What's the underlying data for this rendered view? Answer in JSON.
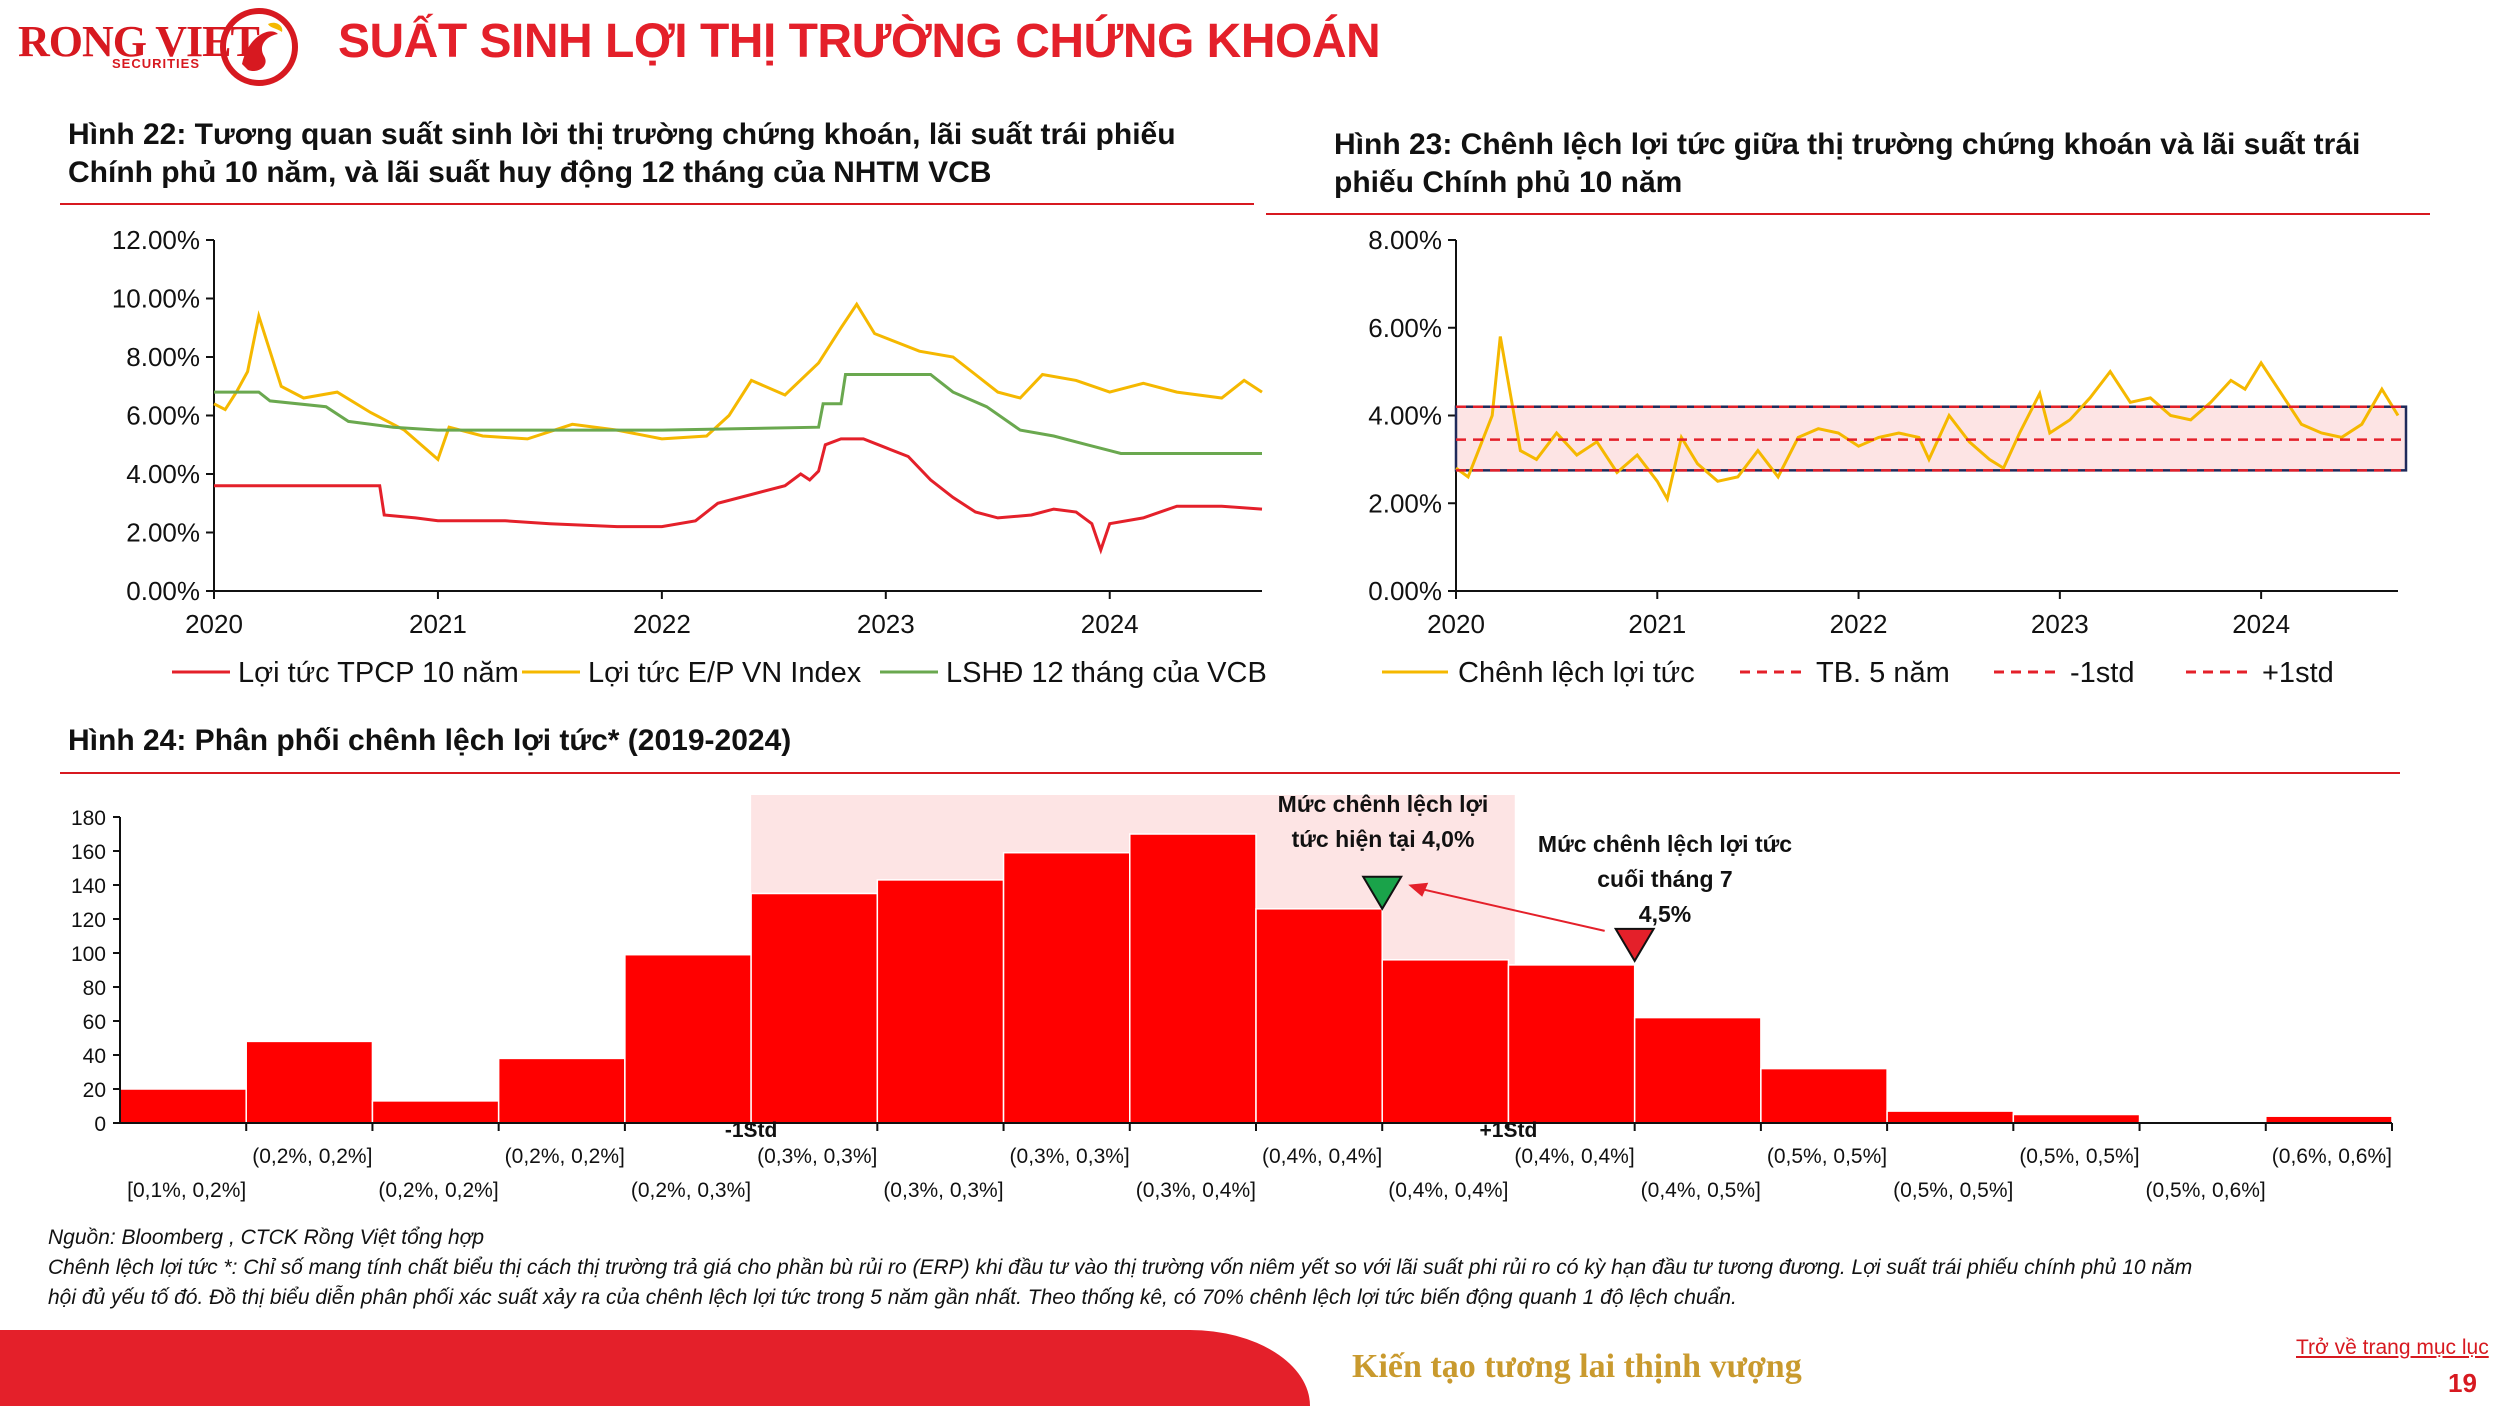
{
  "header": {
    "logo_main": "RONG VIET",
    "logo_sub": "SECURITIES",
    "title": "SUẤT SINH LỢI THỊ TRƯỜNG CHỨNG KHOÁN"
  },
  "fig22": {
    "title_line1": "Hình 22: Tương quan suất sinh lời thị trường chứng khoán, lãi suất trái phiếu",
    "title_line2": "Chính phủ 10 năm, và lãi suất huy động 12 tháng của NHTM VCB"
  },
  "fig23": {
    "title_line1": "Hình 23: Chênh lệch lợi tức giữa thị trường chứng khoán và lãi suất trái",
    "title_line2": "phiếu Chính phủ 10 năm"
  },
  "fig24": {
    "title": "Hình 24: Phân phối chênh lệch lợi tức* (2019-2024)"
  },
  "colors": {
    "red": "#e4202a",
    "gold": "#f5b800",
    "green": "#6aa84f",
    "band": "#fde4e4",
    "navy": "#1f2a5a"
  },
  "chart_data": [
    {
      "type": "line",
      "ylim": [
        0,
        12
      ],
      "y_ticks": [
        "0.00%",
        "2.00%",
        "4.00%",
        "6.00%",
        "8.00%",
        "10.00%",
        "12.00%"
      ],
      "x_ticks": [
        "2020",
        "2021",
        "2022",
        "2023",
        "2024"
      ],
      "xlim": [
        2020.0,
        2024.68
      ],
      "series": [
        {
          "name": "Lợi tức TPCP 10 năm",
          "color": "#e4202a",
          "points": [
            [
              2020.0,
              3.6
            ],
            [
              2020.74,
              3.6
            ],
            [
              2020.76,
              2.6
            ],
            [
              2020.9,
              2.5
            ],
            [
              2021.0,
              2.4
            ],
            [
              2021.3,
              2.4
            ],
            [
              2021.5,
              2.3
            ],
            [
              2021.8,
              2.2
            ],
            [
              2022.0,
              2.2
            ],
            [
              2022.15,
              2.4
            ],
            [
              2022.25,
              3.0
            ],
            [
              2022.4,
              3.3
            ],
            [
              2022.55,
              3.6
            ],
            [
              2022.62,
              4.0
            ],
            [
              2022.66,
              3.8
            ],
            [
              2022.7,
              4.1
            ],
            [
              2022.73,
              5.0
            ],
            [
              2022.8,
              5.2
            ],
            [
              2022.9,
              5.2
            ],
            [
              2023.0,
              4.9
            ],
            [
              2023.1,
              4.6
            ],
            [
              2023.2,
              3.8
            ],
            [
              2023.3,
              3.2
            ],
            [
              2023.4,
              2.7
            ],
            [
              2023.5,
              2.5
            ],
            [
              2023.65,
              2.6
            ],
            [
              2023.75,
              2.8
            ],
            [
              2023.85,
              2.7
            ],
            [
              2023.92,
              2.3
            ],
            [
              2023.96,
              1.4
            ],
            [
              2024.0,
              2.3
            ],
            [
              2024.15,
              2.5
            ],
            [
              2024.3,
              2.9
            ],
            [
              2024.5,
              2.9
            ],
            [
              2024.68,
              2.8
            ]
          ]
        },
        {
          "name": "Lợi tức E/P VN Index",
          "color": "#f5b800",
          "points": [
            [
              2020.0,
              6.4
            ],
            [
              2020.05,
              6.2
            ],
            [
              2020.1,
              6.8
            ],
            [
              2020.15,
              7.5
            ],
            [
              2020.2,
              9.4
            ],
            [
              2020.25,
              8.2
            ],
            [
              2020.3,
              7.0
            ],
            [
              2020.4,
              6.6
            ],
            [
              2020.55,
              6.8
            ],
            [
              2020.7,
              6.1
            ],
            [
              2020.85,
              5.5
            ],
            [
              2021.0,
              4.5
            ],
            [
              2021.05,
              5.6
            ],
            [
              2021.2,
              5.3
            ],
            [
              2021.4,
              5.2
            ],
            [
              2021.6,
              5.7
            ],
            [
              2021.8,
              5.5
            ],
            [
              2022.0,
              5.2
            ],
            [
              2022.2,
              5.3
            ],
            [
              2022.3,
              6.0
            ],
            [
              2022.4,
              7.2
            ],
            [
              2022.55,
              6.7
            ],
            [
              2022.7,
              7.8
            ],
            [
              2022.8,
              9.0
            ],
            [
              2022.87,
              9.8
            ],
            [
              2022.95,
              8.8
            ],
            [
              2023.05,
              8.5
            ],
            [
              2023.15,
              8.2
            ],
            [
              2023.3,
              8.0
            ],
            [
              2023.4,
              7.4
            ],
            [
              2023.5,
              6.8
            ],
            [
              2023.6,
              6.6
            ],
            [
              2023.7,
              7.4
            ],
            [
              2023.85,
              7.2
            ],
            [
              2024.0,
              6.8
            ],
            [
              2024.15,
              7.1
            ],
            [
              2024.3,
              6.8
            ],
            [
              2024.5,
              6.6
            ],
            [
              2024.6,
              7.2
            ],
            [
              2024.68,
              6.8
            ]
          ]
        },
        {
          "name": "LSHĐ 12  tháng của VCB",
          "color": "#6aa84f",
          "points": [
            [
              2020.0,
              6.8
            ],
            [
              2020.2,
              6.8
            ],
            [
              2020.25,
              6.5
            ],
            [
              2020.5,
              6.3
            ],
            [
              2020.6,
              5.8
            ],
            [
              2020.8,
              5.6
            ],
            [
              2021.0,
              5.5
            ],
            [
              2022.0,
              5.5
            ],
            [
              2022.7,
              5.6
            ],
            [
              2022.72,
              6.4
            ],
            [
              2022.8,
              6.4
            ],
            [
              2022.82,
              7.4
            ],
            [
              2023.2,
              7.4
            ],
            [
              2023.3,
              6.8
            ],
            [
              2023.45,
              6.3
            ],
            [
              2023.6,
              5.5
            ],
            [
              2023.75,
              5.3
            ],
            [
              2023.9,
              5.0
            ],
            [
              2024.0,
              4.8
            ],
            [
              2024.05,
              4.7
            ],
            [
              2024.68,
              4.7
            ]
          ]
        }
      ]
    },
    {
      "type": "line",
      "ylim": [
        0,
        8
      ],
      "y_ticks": [
        "0.00%",
        "2.00%",
        "4.00%",
        "6.00%",
        "8.00%"
      ],
      "x_ticks": [
        "2020",
        "2021",
        "2022",
        "2023",
        "2024"
      ],
      "xlim": [
        2020.0,
        2024.68
      ],
      "mean": 3.45,
      "minus_1std": 2.75,
      "plus_1std": 4.2,
      "series": [
        {
          "name": "Chênh lệch lợi tức",
          "color": "#f5b800",
          "points": [
            [
              2020.0,
              2.8
            ],
            [
              2020.06,
              2.6
            ],
            [
              2020.12,
              3.3
            ],
            [
              2020.18,
              4.0
            ],
            [
              2020.22,
              5.8
            ],
            [
              2020.27,
              4.5
            ],
            [
              2020.32,
              3.2
            ],
            [
              2020.4,
              3.0
            ],
            [
              2020.5,
              3.6
            ],
            [
              2020.6,
              3.1
            ],
            [
              2020.7,
              3.4
            ],
            [
              2020.8,
              2.7
            ],
            [
              2020.9,
              3.1
            ],
            [
              2021.0,
              2.5
            ],
            [
              2021.05,
              2.1
            ],
            [
              2021.12,
              3.5
            ],
            [
              2021.2,
              2.9
            ],
            [
              2021.3,
              2.5
            ],
            [
              2021.4,
              2.6
            ],
            [
              2021.5,
              3.2
            ],
            [
              2021.6,
              2.6
            ],
            [
              2021.7,
              3.5
            ],
            [
              2021.8,
              3.7
            ],
            [
              2021.9,
              3.6
            ],
            [
              2022.0,
              3.3
            ],
            [
              2022.1,
              3.5
            ],
            [
              2022.2,
              3.6
            ],
            [
              2022.3,
              3.5
            ],
            [
              2022.35,
              3.0
            ],
            [
              2022.45,
              4.0
            ],
            [
              2022.55,
              3.4
            ],
            [
              2022.65,
              3.0
            ],
            [
              2022.72,
              2.8
            ],
            [
              2022.8,
              3.6
            ],
            [
              2022.9,
              4.5
            ],
            [
              2022.95,
              3.6
            ],
            [
              2023.05,
              3.9
            ],
            [
              2023.15,
              4.4
            ],
            [
              2023.25,
              5.0
            ],
            [
              2023.35,
              4.3
            ],
            [
              2023.45,
              4.4
            ],
            [
              2023.55,
              4.0
            ],
            [
              2023.65,
              3.9
            ],
            [
              2023.75,
              4.3
            ],
            [
              2023.85,
              4.8
            ],
            [
              2023.92,
              4.6
            ],
            [
              2024.0,
              5.2
            ],
            [
              2024.1,
              4.5
            ],
            [
              2024.2,
              3.8
            ],
            [
              2024.3,
              3.6
            ],
            [
              2024.4,
              3.5
            ],
            [
              2024.5,
              3.8
            ],
            [
              2024.6,
              4.6
            ],
            [
              2024.68,
              4.0
            ]
          ]
        },
        {
          "name": "TB. 5 năm",
          "color": "#e4202a",
          "style": "dashed",
          "value": 3.45
        },
        {
          "name": "-1std",
          "color": "#e4202a",
          "style": "dashed",
          "value": 2.75
        },
        {
          "name": "+1std",
          "color": "#e4202a",
          "style": "dashed",
          "value": 4.2
        }
      ]
    },
    {
      "type": "bar",
      "ylim": [
        0,
        180
      ],
      "y_ticks": [
        "0",
        "20",
        "40",
        "60",
        "80",
        "100",
        "120",
        "140",
        "160",
        "180"
      ],
      "categories": [
        "[0,1%, 0,2%]",
        "(0,2%, 0,2%]",
        "(0,2%, 0,2%]",
        "(0,2%, 0,2%]",
        "(0,2%, 0,3%]",
        "(0,3%, 0,3%]",
        "(0,3%, 0,3%]",
        "(0,3%, 0,3%]",
        "(0,3%, 0,4%]",
        "(0,4%, 0,4%]",
        "(0,4%, 0,4%]",
        "(0,4%, 0,4%]",
        "(0,4%, 0,5%]",
        "(0,5%, 0,5%]",
        "(0,5%, 0,5%]",
        "(0,5%, 0,5%]",
        "(0,5%, 0,6%]",
        "(0,6%, 0,6%]"
      ],
      "values": [
        20,
        48,
        13,
        38,
        99,
        135,
        143,
        159,
        170,
        126,
        96,
        93,
        62,
        32,
        7,
        5,
        1,
        4
      ],
      "std_markers": [
        "-1Std",
        "+1Std"
      ],
      "annotations": [
        {
          "line1": "Mức chênh lệch lợi",
          "line2": "tức hiện tại 4,0%",
          "marker_color": "#1aa34a"
        },
        {
          "line1": "Mức chênh lệch lợi tức",
          "line2": "cuối tháng 7",
          "line3": "4,5%",
          "marker_color": "#e4202a"
        }
      ]
    }
  ],
  "notes": {
    "source": "Nguồn: Bloomberg , CTCK Rồng Việt tổng hợp",
    "line1": "Chênh lệch lợi tức *: Chỉ số mang tính chất biểu thị cách thị trường trả giá cho phần bù rủi ro (ERP) khi đầu tư vào thị trường vốn niêm yết so với lãi suất phi rủi ro có kỳ hạn đầu tư tương đương. Lợi suất trái phiếu chính phủ 10 năm",
    "line2": "hội đủ yếu tố đó. Đồ thị biểu diễn phân phối xác suất xảy ra của chênh lệch lợi tức trong 5 năm gần nhất. Theo thống kê, có 70% chênh lệch lợi tức biến động quanh 1 độ lệch chuẩn."
  },
  "footer": {
    "slogan": "Kiến tạo tương lai thịnh vượng",
    "back_link": "Trở về trang mục lục",
    "page_number": "19"
  }
}
